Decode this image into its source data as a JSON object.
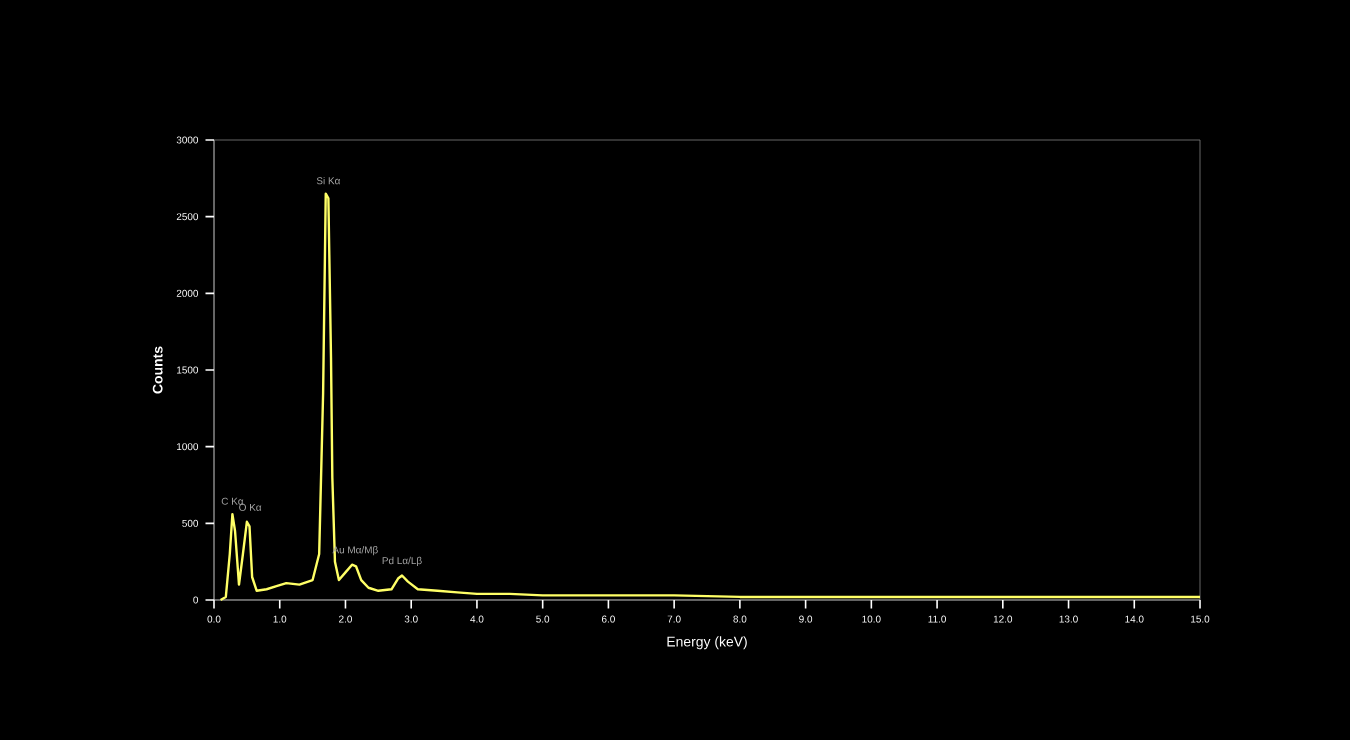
{
  "chart_data": {
    "type": "line",
    "xlabel": "Energy (keV)",
    "ylabel": "Counts",
    "xlim": [
      0,
      15
    ],
    "ylim": [
      0,
      3000
    ],
    "xticks": [
      {
        "value": 0,
        "label": "0.0"
      },
      {
        "value": 1,
        "label": "1.0"
      },
      {
        "value": 2,
        "label": "2.0"
      },
      {
        "value": 3,
        "label": "3.0"
      },
      {
        "value": 4,
        "label": "4.0"
      },
      {
        "value": 5,
        "label": "5.0"
      },
      {
        "value": 6,
        "label": "6.0"
      },
      {
        "value": 7,
        "label": "7.0"
      },
      {
        "value": 8,
        "label": "8.0"
      },
      {
        "value": 9,
        "label": "9.0"
      },
      {
        "value": 10,
        "label": "10.0"
      },
      {
        "value": 11,
        "label": "11.0"
      },
      {
        "value": 12,
        "label": "12.0"
      },
      {
        "value": 13,
        "label": "13.0"
      },
      {
        "value": 14,
        "label": "14.0"
      },
      {
        "value": 15,
        "label": "15.0"
      }
    ],
    "yticks": [
      0,
      500,
      1000,
      1500,
      2000,
      2500,
      3000
    ],
    "grid": false,
    "marker": "none",
    "line_style": "solid",
    "series": [
      {
        "color": "#ffff66",
        "x": [
          0.1,
          0.18,
          0.24,
          0.28,
          0.32,
          0.38,
          0.44,
          0.5,
          0.54,
          0.58,
          0.65,
          0.8,
          0.95,
          1.1,
          1.3,
          1.5,
          1.6,
          1.66,
          1.7,
          1.74,
          1.78,
          1.8,
          1.84,
          1.9,
          2.0,
          2.1,
          2.16,
          2.24,
          2.35,
          2.5,
          2.7,
          2.8,
          2.86,
          2.95,
          3.1,
          3.4,
          3.7,
          4.0,
          4.5,
          5.0,
          5.5,
          6.0,
          7.0,
          8.0,
          9.0,
          10.0,
          11.0,
          12.0,
          13.0,
          14.0,
          15.0
        ],
        "values": [
          0,
          20,
          300,
          560,
          450,
          100,
          300,
          510,
          480,
          150,
          60,
          70,
          90,
          110,
          100,
          130,
          300,
          1350,
          2650,
          2620,
          1580,
          800,
          250,
          130,
          180,
          230,
          220,
          130,
          80,
          60,
          70,
          140,
          160,
          120,
          70,
          60,
          50,
          40,
          40,
          30,
          30,
          30,
          30,
          20,
          20,
          20,
          20,
          20,
          20,
          20,
          20
        ]
      }
    ],
    "annotations": [
      {
        "text": "C Kα",
        "x": 0.28,
        "y": 560
      },
      {
        "text": "O Kα",
        "x": 0.55,
        "y": 520
      },
      {
        "text": "Si Kα",
        "x": 1.74,
        "y": 2650
      },
      {
        "text": "Au Mα/Mβ",
        "x": 2.15,
        "y": 230
      },
      {
        "text": "Pd Lα/Lβ",
        "x": 2.86,
        "y": 160
      }
    ]
  }
}
